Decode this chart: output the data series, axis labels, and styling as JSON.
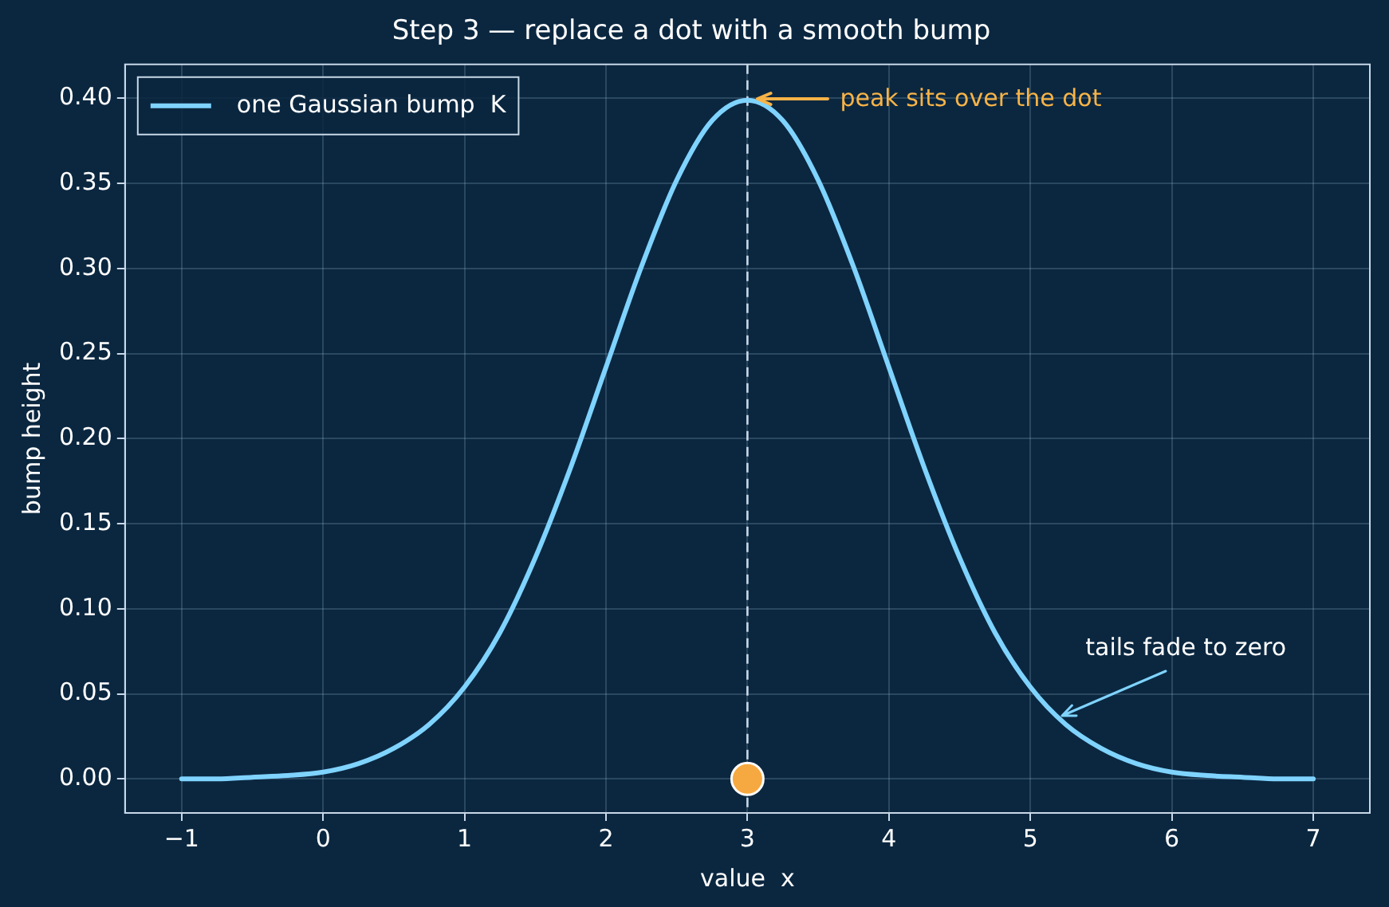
{
  "chart_data": {
    "type": "line",
    "title": "Step 3 — replace a dot with a smooth bump",
    "xlabel": "value  x",
    "ylabel": "bump height",
    "xlim": [
      -1.4,
      7.4
    ],
    "ylim": [
      -0.02,
      0.42
    ],
    "xticks": [
      -1,
      0,
      1,
      2,
      3,
      4,
      5,
      6,
      7
    ],
    "yticks": [
      {
        "value": 0,
        "label": "0.00"
      },
      {
        "value": 0.05,
        "label": "0.05"
      },
      {
        "value": 0.1,
        "label": "0.10"
      },
      {
        "value": 0.15,
        "label": "0.15"
      },
      {
        "value": 0.2,
        "label": "0.20"
      },
      {
        "value": 0.25,
        "label": "0.25"
      },
      {
        "value": 0.3,
        "label": "0.30"
      },
      {
        "value": 0.35,
        "label": "0.35"
      },
      {
        "value": 0.4,
        "label": "0.40"
      }
    ],
    "grid": true,
    "legend": "top left",
    "series": [
      {
        "name": "one Gaussian bump  K",
        "color": "#7fd3ff",
        "marker": "none",
        "x": [
          -1,
          -0.75,
          -0.5,
          -0.25,
          0,
          0.25,
          0.5,
          0.75,
          1,
          1.25,
          1.5,
          1.75,
          2,
          2.25,
          2.5,
          2.75,
          3,
          3.25,
          3.5,
          3.75,
          4,
          4.25,
          4.5,
          4.75,
          5,
          5.25,
          5.5,
          5.75,
          6,
          6.25,
          6.5,
          6.75,
          7
        ],
        "values": [
          0,
          0,
          0.001,
          0.002,
          0.004,
          0.009,
          0.018,
          0.032,
          0.054,
          0.086,
          0.13,
          0.183,
          0.242,
          0.301,
          0.352,
          0.387,
          0.399,
          0.387,
          0.352,
          0.301,
          0.242,
          0.183,
          0.13,
          0.086,
          0.054,
          0.032,
          0.018,
          0.009,
          0.004,
          0.002,
          0.001,
          0,
          0
        ]
      },
      {
        "type": "scatter",
        "marker": "circle",
        "color": "#f7a941",
        "x": [
          3
        ],
        "values": [
          0
        ]
      }
    ],
    "ref_lines": [
      {
        "axis": "x",
        "value": 3,
        "color": "#c8d8e8",
        "line_style": "dashed"
      }
    ],
    "annotations": [
      "peak sits over the dot",
      {
        "text": "tails fade to zero",
        "x": 5.22,
        "y": 0.037
      }
    ]
  }
}
